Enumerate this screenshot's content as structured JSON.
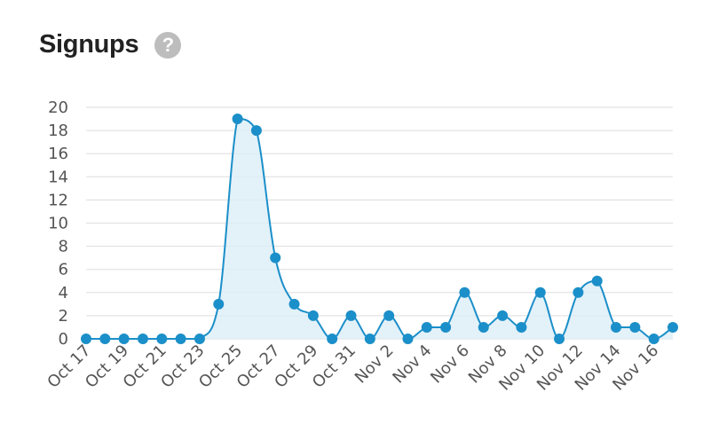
{
  "header": {
    "title": "Signups",
    "help_icon": "?"
  },
  "colors": {
    "line": "#1b8fc9",
    "fill": "#dcedf7",
    "grid": "#dddddd",
    "axis_text": "#555555"
  },
  "chart_data": {
    "type": "area",
    "title": "Signups",
    "xlabel": "",
    "ylabel": "",
    "ylim": [
      0,
      20
    ],
    "yticks": [
      0,
      2,
      4,
      6,
      8,
      10,
      12,
      14,
      16,
      18,
      20
    ],
    "xtick_labels": [
      "Oct 17",
      "Oct 19",
      "Oct 21",
      "Oct 23",
      "Oct 25",
      "Oct 27",
      "Oct 29",
      "Oct 31",
      "Nov 2",
      "Nov 4",
      "Nov 6",
      "Nov 8",
      "Nov 10",
      "Nov 12",
      "Nov 14",
      "Nov 16"
    ],
    "x": [
      "Oct 17",
      "Oct 18",
      "Oct 19",
      "Oct 20",
      "Oct 21",
      "Oct 22",
      "Oct 23",
      "Oct 24",
      "Oct 25",
      "Oct 26",
      "Oct 27",
      "Oct 28",
      "Oct 29",
      "Oct 30",
      "Oct 31",
      "Nov 1",
      "Nov 2",
      "Nov 3",
      "Nov 4",
      "Nov 5",
      "Nov 6",
      "Nov 7",
      "Nov 8",
      "Nov 9",
      "Nov 10",
      "Nov 11",
      "Nov 12",
      "Nov 13",
      "Nov 14",
      "Nov 15",
      "Nov 16",
      "Nov 17"
    ],
    "values": [
      0,
      0,
      0,
      0,
      0,
      0,
      0,
      3,
      19,
      18,
      7,
      3,
      2,
      0,
      2,
      0,
      2,
      0,
      1,
      1,
      4,
      1,
      2,
      1,
      4,
      0,
      4,
      5,
      1,
      1,
      0,
      1
    ],
    "grid": true
  }
}
